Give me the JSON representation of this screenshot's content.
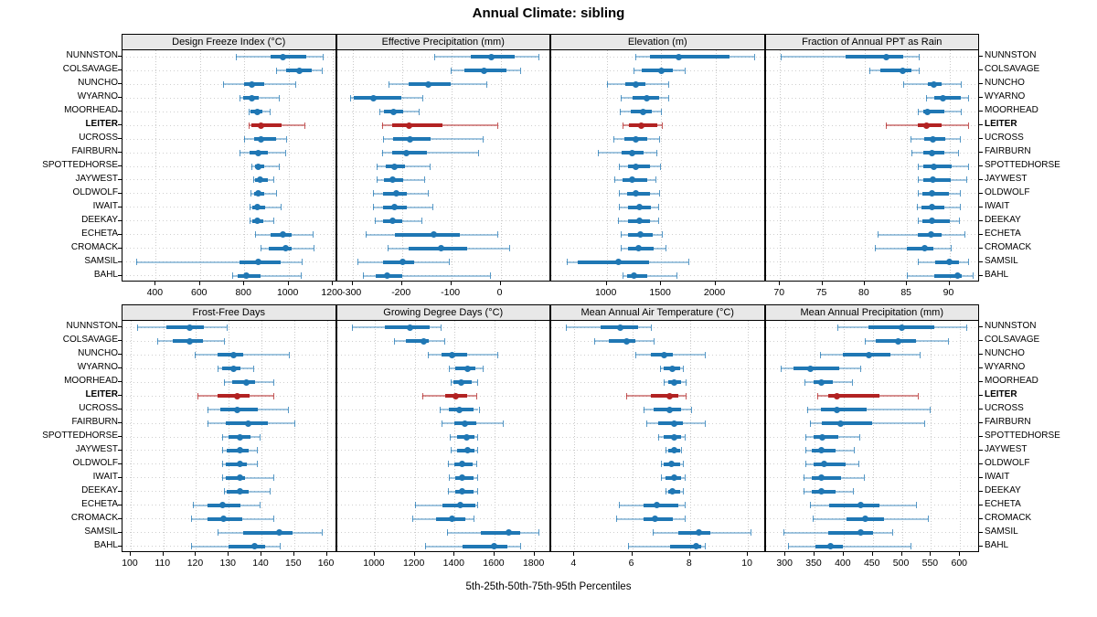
{
  "title": "Annual Climate: sibling",
  "caption": "5th-25th-50th-75th-95th Percentiles",
  "highlight_station": "LEITER",
  "colors": {
    "normal": "#1f77b4",
    "normal_light": "rgba(31,119,180,0.42)",
    "highlight": "#b22222",
    "highlight_light": "rgba(178,34,34,0.5)",
    "strip_bg": "#e8e8e8",
    "grid": "#c9c9c9"
  },
  "chart_data": {
    "type": "dotplot",
    "layout": "2-row by 4-column trellis of percentile interval plots",
    "percentiles": [
      5,
      25,
      50,
      75,
      95
    ],
    "legend": "whisker = 5th-95th, thick bar = 25th-75th, dot = 50th percentile",
    "stations": [
      "NUNNSTON",
      "COLSAVAGE",
      "NUNCHO",
      "WYARNO",
      "MOORHEAD",
      "LEITER",
      "UCROSS",
      "FAIRBURN",
      "SPOTTEDHORSE",
      "JAYWEST",
      "OLDWOLF",
      "IWAIT",
      "DEEKAY",
      "ECHETA",
      "CROMACK",
      "SAMSIL",
      "BAHL"
    ],
    "highlight": "LEITER",
    "panels": [
      {
        "title": "Design Freeze Index (°C)",
        "row": 0,
        "col": 0,
        "xlim": [
          250,
          1210
        ],
        "ticks": [
          400,
          600,
          800,
          1000,
          1200
        ],
        "values": [
          [
            760,
            920,
            975,
            1080,
            1155
          ],
          [
            945,
            990,
            1050,
            1105,
            1150
          ],
          [
            705,
            800,
            833,
            890,
            1030
          ],
          [
            780,
            795,
            835,
            865,
            955
          ],
          [
            820,
            830,
            860,
            880,
            915
          ],
          [
            820,
            832,
            875,
            968,
            1070
          ],
          [
            800,
            845,
            875,
            945,
            990
          ],
          [
            780,
            825,
            865,
            905,
            985
          ],
          [
            832,
            850,
            865,
            890,
            955
          ],
          [
            840,
            850,
            870,
            905,
            930
          ],
          [
            830,
            845,
            865,
            890,
            945
          ],
          [
            822,
            835,
            860,
            895,
            965
          ],
          [
            822,
            835,
            860,
            885,
            930
          ],
          [
            850,
            920,
            975,
            1015,
            1110
          ],
          [
            875,
            910,
            985,
            1015,
            1115
          ],
          [
            310,
            780,
            865,
            965,
            1060
          ],
          [
            745,
            770,
            810,
            875,
            1055
          ]
        ]
      },
      {
        "title": "Effective Precipitation (mm)",
        "row": 0,
        "col": 1,
        "xlim": [
          -332,
          99
        ],
        "ticks": [
          -300,
          -200,
          -100,
          0
        ],
        "values": [
          [
            -135,
            -61,
            -18,
            28,
            77
          ],
          [
            -101,
            -74,
            -34,
            12,
            40
          ],
          [
            -227,
            -186,
            -146,
            -101,
            -28
          ],
          [
            -306,
            -298,
            -257,
            -201,
            -158
          ],
          [
            -246,
            -236,
            -217,
            -198,
            -166
          ],
          [
            -240,
            -220,
            -186,
            -117,
            -7
          ],
          [
            -239,
            -218,
            -184,
            -142,
            -37
          ],
          [
            -240,
            -220,
            -191,
            -150,
            -45
          ],
          [
            -252,
            -233,
            -216,
            -193,
            -144
          ],
          [
            -252,
            -236,
            -218,
            -198,
            -155
          ],
          [
            -258,
            -238,
            -211,
            -190,
            -147
          ],
          [
            -258,
            -238,
            -215,
            -190,
            -139
          ],
          [
            -255,
            -238,
            -218,
            -199,
            -160
          ],
          [
            -273,
            -215,
            -135,
            -83,
            -6
          ],
          [
            -230,
            -187,
            -120,
            -68,
            17
          ],
          [
            -290,
            -239,
            -198,
            -175,
            -104
          ],
          [
            -280,
            -254,
            -230,
            -199,
            -21
          ]
        ]
      },
      {
        "title": "Elevation (m)",
        "row": 0,
        "col": 2,
        "xlim": [
          490,
          2445
        ],
        "ticks": [
          1000,
          1500,
          2000
        ],
        "values": [
          [
            1260,
            1400,
            1665,
            2130,
            2355
          ],
          [
            1245,
            1322,
            1505,
            1610,
            1715
          ],
          [
            1006,
            1174,
            1267,
            1356,
            1567
          ],
          [
            1126,
            1238,
            1370,
            1482,
            1567
          ],
          [
            1118,
            1225,
            1337,
            1412,
            1497
          ],
          [
            1146,
            1202,
            1322,
            1462,
            1505
          ],
          [
            1061,
            1160,
            1267,
            1370,
            1482
          ],
          [
            922,
            1137,
            1238,
            1343,
            1454
          ],
          [
            1115,
            1200,
            1270,
            1400,
            1490
          ],
          [
            1070,
            1150,
            1235,
            1370,
            1450
          ],
          [
            1115,
            1185,
            1270,
            1395,
            1480
          ],
          [
            1115,
            1200,
            1300,
            1410,
            1470
          ],
          [
            1100,
            1200,
            1305,
            1395,
            1470
          ],
          [
            1125,
            1200,
            1310,
            1420,
            1510
          ],
          [
            1130,
            1200,
            1295,
            1435,
            1540
          ],
          [
            630,
            730,
            1110,
            1390,
            1750
          ],
          [
            1150,
            1185,
            1255,
            1370,
            1640
          ]
        ]
      },
      {
        "title": "Fraction of Annual PPT as Rain",
        "row": 0,
        "col": 3,
        "xlim": [
          68.3,
          93.4
        ],
        "ticks": [
          70,
          75,
          80,
          85,
          90
        ],
        "values": [
          [
            70.1,
            77.8,
            82.5,
            84.5,
            86.4
          ],
          [
            80.6,
            81.8,
            84.5,
            85.5,
            86.4
          ],
          [
            84.5,
            87.5,
            88.2,
            89.1,
            91.3
          ],
          [
            87.2,
            88.2,
            89.2,
            91.3,
            92.2
          ],
          [
            86.3,
            86.9,
            87.4,
            89.4,
            91.3
          ],
          [
            82.5,
            86.3,
            87.3,
            89.1,
            92.2
          ],
          [
            85.4,
            87.0,
            88.1,
            89.5,
            91.2
          ],
          [
            85.5,
            86.9,
            87.9,
            89.4,
            91.0
          ],
          [
            86.3,
            86.9,
            88.2,
            90.3,
            92.2
          ],
          [
            86.3,
            86.9,
            88.1,
            90.2,
            92.0
          ],
          [
            86.3,
            86.8,
            88.0,
            89.9,
            91.2
          ],
          [
            86.2,
            86.7,
            87.9,
            89.4,
            91.2
          ],
          [
            86.3,
            86.8,
            88.0,
            90.1,
            91.1
          ],
          [
            81.5,
            86.3,
            87.8,
            89.1,
            91.8
          ],
          [
            81.2,
            85.0,
            87.1,
            88.1,
            90.2
          ],
          [
            86.3,
            88.3,
            90.0,
            91.1,
            92.2
          ],
          [
            85.0,
            88.2,
            91.0,
            91.5,
            92.8
          ]
        ]
      },
      {
        "title": "Frost-Free Days",
        "row": 1,
        "col": 0,
        "xlim": [
          97.5,
          162.5
        ],
        "ticks": [
          100,
          110,
          120,
          130,
          140,
          150,
          160
        ],
        "values": [
          [
            102,
            111,
            118,
            122.5,
            129.5
          ],
          [
            108,
            113,
            118,
            122,
            128.5
          ],
          [
            119.5,
            126.5,
            131.5,
            134.5,
            148.5
          ],
          [
            126.5,
            128,
            131.5,
            133.5,
            137.5
          ],
          [
            128.5,
            131,
            135.5,
            138,
            143.5
          ],
          [
            120.5,
            126.5,
            132.5,
            136.5,
            143.5
          ],
          [
            123.5,
            127.5,
            132.5,
            139,
            148
          ],
          [
            123.5,
            129,
            136,
            142,
            150
          ],
          [
            128,
            130,
            133.5,
            136.5,
            139.5
          ],
          [
            128,
            129.5,
            133.5,
            136,
            138.5
          ],
          [
            128,
            129,
            133.5,
            135.5,
            138.5
          ],
          [
            128,
            129,
            133.5,
            135,
            143.5
          ],
          [
            128.5,
            129.5,
            133.5,
            136,
            142.5
          ],
          [
            119,
            123.5,
            128,
            133.5,
            139.5
          ],
          [
            118.5,
            123.5,
            128.5,
            134,
            143.5
          ],
          [
            126.5,
            134.5,
            145.5,
            149.5,
            158.5
          ],
          [
            118.5,
            130,
            138,
            141,
            145.5
          ]
        ]
      },
      {
        "title": "Growing Degree Days (°C)",
        "row": 1,
        "col": 1,
        "xlim": [
          810,
          1875
        ],
        "ticks": [
          1000,
          1200,
          1400,
          1600,
          1800
        ],
        "values": [
          [
            885,
            1050,
            1175,
            1275,
            1330
          ],
          [
            1095,
            1155,
            1245,
            1270,
            1350
          ],
          [
            1265,
            1335,
            1385,
            1465,
            1615
          ],
          [
            1370,
            1405,
            1463,
            1505,
            1540
          ],
          [
            1382,
            1395,
            1432,
            1485,
            1515
          ],
          [
            1240,
            1355,
            1405,
            1465,
            1510
          ],
          [
            1325,
            1372,
            1425,
            1495,
            1520
          ],
          [
            1335,
            1397,
            1450,
            1510,
            1640
          ],
          [
            1375,
            1412,
            1460,
            1500,
            1515
          ],
          [
            1380,
            1412,
            1463,
            1500,
            1515
          ],
          [
            1365,
            1400,
            1437,
            1490,
            1510
          ],
          [
            1370,
            1405,
            1437,
            1493,
            1513
          ],
          [
            1368,
            1402,
            1437,
            1493,
            1513
          ],
          [
            1200,
            1340,
            1428,
            1505,
            1515
          ],
          [
            1190,
            1305,
            1385,
            1455,
            1493
          ],
          [
            1360,
            1530,
            1670,
            1730,
            1820
          ],
          [
            1250,
            1440,
            1600,
            1665,
            1730
          ]
        ]
      },
      {
        "title": "Mean Annual Air Temperature (°C)",
        "row": 1,
        "col": 2,
        "xlim": [
          3.2,
          10.55
        ],
        "ticks": [
          4,
          6,
          8,
          10
        ],
        "values": [
          [
            3.7,
            4.9,
            5.6,
            6.2,
            6.65
          ],
          [
            4.7,
            5.2,
            5.8,
            6.1,
            6.75
          ],
          [
            6.1,
            6.65,
            7.1,
            7.4,
            8.5
          ],
          [
            6.95,
            7.1,
            7.4,
            7.65,
            7.75
          ],
          [
            7.1,
            7.25,
            7.45,
            7.7,
            7.85
          ],
          [
            5.8,
            6.65,
            7.3,
            7.6,
            7.85
          ],
          [
            6.4,
            6.75,
            7.3,
            7.7,
            8.05
          ],
          [
            6.5,
            6.9,
            7.45,
            7.75,
            8.5
          ],
          [
            6.9,
            7.1,
            7.45,
            7.7,
            7.8
          ],
          [
            7.15,
            7.25,
            7.45,
            7.65,
            7.7
          ],
          [
            7.0,
            7.1,
            7.35,
            7.65,
            7.75
          ],
          [
            7.0,
            7.15,
            7.45,
            7.7,
            7.8
          ],
          [
            7.15,
            7.25,
            7.4,
            7.65,
            7.75
          ],
          [
            5.55,
            6.4,
            6.85,
            7.6,
            7.8
          ],
          [
            5.45,
            6.4,
            6.8,
            7.4,
            7.8
          ],
          [
            6.7,
            7.6,
            8.3,
            8.7,
            10.1
          ],
          [
            5.85,
            7.3,
            8.2,
            8.4,
            8.5
          ]
        ]
      },
      {
        "title": "Mean Annual Precipitation (mm)",
        "row": 1,
        "col": 3,
        "xlim": [
          266,
          631
        ],
        "ticks": [
          300,
          350,
          400,
          450,
          500,
          550,
          600
        ],
        "values": [
          [
            390,
            442,
            500,
            555,
            610
          ],
          [
            437,
            455,
            494,
            525,
            579
          ],
          [
            359,
            399,
            443,
            481,
            530
          ],
          [
            292,
            314,
            343,
            392,
            429
          ],
          [
            332,
            348,
            362,
            382,
            415
          ],
          [
            355,
            373,
            389,
            462,
            527
          ],
          [
            338,
            361,
            389,
            439,
            548
          ],
          [
            342,
            362,
            395,
            449,
            539
          ],
          [
            334,
            349,
            364,
            391,
            427
          ],
          [
            334,
            346,
            361,
            386,
            417
          ],
          [
            334,
            349,
            366,
            404,
            426
          ],
          [
            331,
            345,
            362,
            396,
            434
          ],
          [
            331,
            345,
            361,
            386,
            416
          ],
          [
            342,
            375,
            430,
            462,
            525
          ],
          [
            347,
            405,
            437,
            470,
            545
          ],
          [
            297,
            373,
            430,
            450,
            483
          ],
          [
            305,
            352,
            378,
            398,
            515
          ]
        ]
      }
    ]
  }
}
